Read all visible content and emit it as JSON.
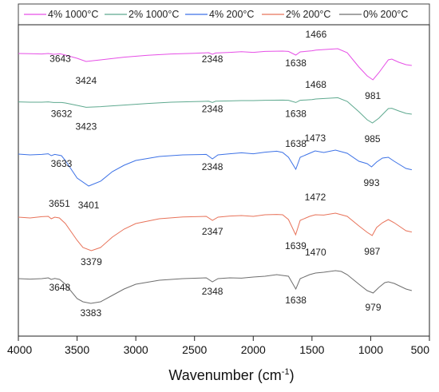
{
  "chart_data": {
    "type": "line",
    "xlabel": "Wavenumber (cm",
    "xlabel_sup": "-1",
    "xlabel_end": ")",
    "xlim": [
      4000,
      500
    ],
    "x_ticks": [
      4000,
      3500,
      3000,
      2500,
      2000,
      1500,
      1000,
      500
    ],
    "y_axis": "none",
    "legend_position": "top",
    "grid": false,
    "series": [
      {
        "name": "4% 1000°C",
        "color": "#e64fe6",
        "points": [
          [
            4000,
            0.05
          ],
          [
            3900,
            0.04
          ],
          [
            3800,
            0.02
          ],
          [
            3745,
            0.05
          ],
          [
            3700,
            0.0
          ],
          [
            3643,
            0.03
          ],
          [
            3600,
            -0.05
          ],
          [
            3500,
            -0.25
          ],
          [
            3424,
            -0.45
          ],
          [
            3300,
            -0.35
          ],
          [
            3100,
            -0.18
          ],
          [
            2900,
            -0.06
          ],
          [
            2700,
            0.02
          ],
          [
            2500,
            0.06
          ],
          [
            2380,
            0.1
          ],
          [
            2348,
            0.0
          ],
          [
            2320,
            0.08
          ],
          [
            2200,
            0.12
          ],
          [
            2100,
            0.16
          ],
          [
            2000,
            0.12
          ],
          [
            1900,
            0.18
          ],
          [
            1750,
            0.2
          ],
          [
            1700,
            0.18
          ],
          [
            1638,
            -0.05
          ],
          [
            1600,
            0.15
          ],
          [
            1500,
            0.22
          ],
          [
            1466,
            0.26
          ],
          [
            1350,
            0.32
          ],
          [
            1280,
            0.35
          ],
          [
            1200,
            0.1
          ],
          [
            1100,
            -0.8
          ],
          [
            1030,
            -1.35
          ],
          [
            981,
            -1.6
          ],
          [
            930,
            -1.15
          ],
          [
            850,
            -0.35
          ],
          [
            820,
            -0.3
          ],
          [
            760,
            -0.5
          ],
          [
            700,
            -0.65
          ],
          [
            650,
            -0.7
          ]
        ],
        "peak_labels": [
          {
            "x": 3643,
            "label": "3643"
          },
          {
            "x": 3424,
            "label": "3424"
          },
          {
            "x": 2348,
            "label": "2348"
          },
          {
            "x": 1638,
            "label": "1638"
          },
          {
            "x": 1466,
            "label": "1466"
          },
          {
            "x": 981,
            "label": "981"
          }
        ]
      },
      {
        "name": "2% 1000°C",
        "color": "#5ea98f",
        "points": [
          [
            4000,
            0.02
          ],
          [
            3900,
            0.0
          ],
          [
            3800,
            0.0
          ],
          [
            3745,
            0.02
          ],
          [
            3700,
            -0.02
          ],
          [
            3632,
            -0.02
          ],
          [
            3600,
            -0.05
          ],
          [
            3500,
            -0.2
          ],
          [
            3423,
            -0.32
          ],
          [
            3300,
            -0.28
          ],
          [
            3100,
            -0.18
          ],
          [
            2900,
            -0.08
          ],
          [
            2700,
            0.0
          ],
          [
            2500,
            0.04
          ],
          [
            2380,
            0.06
          ],
          [
            2348,
            -0.02
          ],
          [
            2320,
            0.06
          ],
          [
            2200,
            0.08
          ],
          [
            2100,
            0.1
          ],
          [
            2000,
            0.1
          ],
          [
            1900,
            0.12
          ],
          [
            1750,
            0.13
          ],
          [
            1700,
            0.12
          ],
          [
            1638,
            -0.02
          ],
          [
            1600,
            0.12
          ],
          [
            1500,
            0.16
          ],
          [
            1468,
            0.2
          ],
          [
            1350,
            0.25
          ],
          [
            1280,
            0.28
          ],
          [
            1200,
            0.05
          ],
          [
            1100,
            -0.6
          ],
          [
            1030,
            -1.1
          ],
          [
            985,
            -1.3
          ],
          [
            930,
            -1.0
          ],
          [
            850,
            -0.4
          ],
          [
            820,
            -0.38
          ],
          [
            760,
            -0.55
          ],
          [
            700,
            -0.7
          ],
          [
            650,
            -0.75
          ]
        ],
        "peak_labels": [
          {
            "x": 3632,
            "label": "3632"
          },
          {
            "x": 3423,
            "label": "3423"
          },
          {
            "x": 2348,
            "label": "2348"
          },
          {
            "x": 1638,
            "label": "1638"
          },
          {
            "x": 1468,
            "label": "1468"
          },
          {
            "x": 985,
            "label": "985"
          }
        ]
      },
      {
        "name": "4% 200°C",
        "color": "#3d72e6",
        "points": [
          [
            4000,
            0.1
          ],
          [
            3900,
            0.05
          ],
          [
            3800,
            0.08
          ],
          [
            3745,
            0.12
          ],
          [
            3720,
            0.0
          ],
          [
            3690,
            0.08
          ],
          [
            3633,
            0.0
          ],
          [
            3600,
            -0.3
          ],
          [
            3500,
            -1.4
          ],
          [
            3401,
            -1.9
          ],
          [
            3300,
            -1.6
          ],
          [
            3200,
            -1.0
          ],
          [
            3100,
            -0.6
          ],
          [
            3000,
            -0.3
          ],
          [
            2800,
            -0.05
          ],
          [
            2600,
            0.05
          ],
          [
            2400,
            0.08
          ],
          [
            2348,
            -0.2
          ],
          [
            2300,
            0.05
          ],
          [
            2200,
            0.12
          ],
          [
            2100,
            0.18
          ],
          [
            2000,
            0.12
          ],
          [
            1900,
            0.22
          ],
          [
            1800,
            0.28
          ],
          [
            1750,
            0.2
          ],
          [
            1700,
            -0.1
          ],
          [
            1638,
            -0.85
          ],
          [
            1600,
            -0.1
          ],
          [
            1520,
            0.15
          ],
          [
            1473,
            0.3
          ],
          [
            1400,
            0.2
          ],
          [
            1300,
            0.35
          ],
          [
            1200,
            0.15
          ],
          [
            1100,
            -0.35
          ],
          [
            1030,
            -0.5
          ],
          [
            993,
            -0.7
          ],
          [
            950,
            -0.4
          ],
          [
            900,
            -0.15
          ],
          [
            850,
            -0.1
          ],
          [
            800,
            -0.35
          ],
          [
            700,
            -0.8
          ],
          [
            650,
            -0.88
          ]
        ],
        "peak_labels": [
          {
            "x": 3633,
            "label": "3633"
          },
          {
            "x": 3401,
            "label": "3401"
          },
          {
            "x": 2348,
            "label": "2348"
          },
          {
            "x": 1638,
            "label": "1638"
          },
          {
            "x": 1473,
            "label": "1473"
          },
          {
            "x": 993,
            "label": "993"
          }
        ]
      },
      {
        "name": "2% 200°C",
        "color": "#e8735a",
        "points": [
          [
            4000,
            0.05
          ],
          [
            3900,
            0.0
          ],
          [
            3800,
            0.08
          ],
          [
            3745,
            0.1
          ],
          [
            3720,
            -0.05
          ],
          [
            3690,
            0.05
          ],
          [
            3651,
            0.0
          ],
          [
            3600,
            -0.35
          ],
          [
            3500,
            -1.4
          ],
          [
            3450,
            -1.85
          ],
          [
            3379,
            -2.05
          ],
          [
            3300,
            -1.85
          ],
          [
            3200,
            -1.2
          ],
          [
            3100,
            -0.7
          ],
          [
            3000,
            -0.35
          ],
          [
            2800,
            -0.05
          ],
          [
            2600,
            0.06
          ],
          [
            2400,
            0.1
          ],
          [
            2347,
            -0.15
          ],
          [
            2300,
            0.05
          ],
          [
            2200,
            0.12
          ],
          [
            2100,
            0.15
          ],
          [
            2000,
            0.1
          ],
          [
            1900,
            0.2
          ],
          [
            1800,
            0.22
          ],
          [
            1750,
            0.2
          ],
          [
            1700,
            -0.1
          ],
          [
            1639,
            -1.05
          ],
          [
            1600,
            -0.15
          ],
          [
            1520,
            0.1
          ],
          [
            1472,
            0.2
          ],
          [
            1400,
            0.18
          ],
          [
            1300,
            0.3
          ],
          [
            1200,
            0.1
          ],
          [
            1100,
            -0.5
          ],
          [
            1030,
            -0.9
          ],
          [
            987,
            -1.1
          ],
          [
            950,
            -0.6
          ],
          [
            900,
            -0.3
          ],
          [
            850,
            -0.1
          ],
          [
            800,
            -0.3
          ],
          [
            700,
            -0.8
          ],
          [
            650,
            -0.88
          ]
        ],
        "peak_labels": [
          {
            "x": 3651,
            "label": "3651"
          },
          {
            "x": 3379,
            "label": "3379"
          },
          {
            "x": 2347,
            "label": "2347"
          },
          {
            "x": 1639,
            "label": "1639"
          },
          {
            "x": 1472,
            "label": "1472"
          },
          {
            "x": 987,
            "label": "987"
          }
        ]
      },
      {
        "name": "0% 200°C",
        "color": "#6e6e6e",
        "points": [
          [
            4000,
            0.05
          ],
          [
            3900,
            0.02
          ],
          [
            3800,
            0.05
          ],
          [
            3745,
            0.1
          ],
          [
            3720,
            0.0
          ],
          [
            3690,
            0.06
          ],
          [
            3648,
            0.0
          ],
          [
            3600,
            -0.3
          ],
          [
            3500,
            -1.2
          ],
          [
            3450,
            -1.4
          ],
          [
            3383,
            -1.5
          ],
          [
            3300,
            -1.4
          ],
          [
            3200,
            -1.0
          ],
          [
            3100,
            -0.6
          ],
          [
            3000,
            -0.3
          ],
          [
            2800,
            -0.05
          ],
          [
            2600,
            0.05
          ],
          [
            2400,
            0.1
          ],
          [
            2348,
            -0.15
          ],
          [
            2300,
            0.05
          ],
          [
            2200,
            0.1
          ],
          [
            2100,
            0.08
          ],
          [
            2000,
            0.15
          ],
          [
            1900,
            0.2
          ],
          [
            1800,
            0.3
          ],
          [
            1700,
            0.2
          ],
          [
            1638,
            -0.6
          ],
          [
            1600,
            0.05
          ],
          [
            1520,
            0.3
          ],
          [
            1470,
            0.4
          ],
          [
            1400,
            0.45
          ],
          [
            1300,
            0.55
          ],
          [
            1250,
            0.5
          ],
          [
            1200,
            0.3
          ],
          [
            1100,
            -0.3
          ],
          [
            1030,
            -0.7
          ],
          [
            979,
            -0.85
          ],
          [
            930,
            -0.5
          ],
          [
            880,
            -0.2
          ],
          [
            850,
            -0.15
          ],
          [
            800,
            -0.25
          ],
          [
            700,
            -0.6
          ],
          [
            650,
            -0.7
          ]
        ],
        "peak_labels": [
          {
            "x": 3648,
            "label": "3648"
          },
          {
            "x": 3383,
            "label": "3383"
          },
          {
            "x": 2348,
            "label": "2348"
          },
          {
            "x": 1638,
            "label": "1638"
          },
          {
            "x": 1470,
            "label": "1470"
          },
          {
            "x": 979,
            "label": "979"
          }
        ]
      }
    ]
  }
}
